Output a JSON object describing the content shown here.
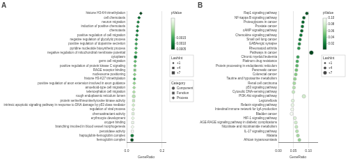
{
  "chart_data": [
    {
      "type": "scatter",
      "title": "A",
      "orientation": "horizontal",
      "xlabel": "GeneRatio",
      "categories": [
        "histone H3-K4 trimethylation",
        "cell chemotaxis",
        "neuron migration",
        "induction of positive chemotaxis",
        "chemotaxis",
        "positive regulation of cell migration",
        "negative regulation of glycolytic process",
        "positive regulation of dopamine secretion",
        "pyridine nucleotide biosynthetic process",
        "negative regulation of mitochondrial membrane potential",
        "cytoplasm",
        "germ cell migration",
        "positive regulation of protein kinase C signaling",
        "RAGE receptor binding",
        "nucleosome positioning",
        "histone H3-K27 trimethylation",
        "positive regulation of axon extension involved in axon guidance",
        "amoeboid-type cell migration",
        "telencephalon cell migration",
        "rough endoplasmic reticulum lumen",
        "protein serine/threonine/tyrosine kinase activity",
        "intrinsic apoptotic signaling pathway in response to DNA damage by p53 class mediator",
        "regulation of viral process",
        "chemoattractant activity",
        "erythrocyte development",
        "oxygen binding",
        "branching involved in blood vessel morphogenesis",
        "peroxidase activity",
        "haptoglobin-hemoglobin complex",
        "hemoglobin complex"
      ],
      "series": [
        {
          "name": "Component",
          "marker": "circle",
          "values": [
            null,
            null,
            null,
            null,
            null,
            null,
            null,
            null,
            null,
            null,
            0.05,
            null,
            null,
            null,
            null,
            null,
            null,
            null,
            null,
            0.04,
            null,
            null,
            null,
            null,
            null,
            null,
            null,
            null,
            0.031,
            0.03
          ],
          "pvalue": [
            null,
            null,
            null,
            null,
            null,
            null,
            null,
            null,
            null,
            null,
            0.001,
            null,
            null,
            null,
            null,
            null,
            null,
            null,
            null,
            0.0024,
            null,
            null,
            null,
            null,
            null,
            null,
            null,
            null,
            0.001,
            0.0005
          ]
        },
        {
          "name": "Function",
          "marker": "square",
          "values": [
            null,
            null,
            null,
            null,
            null,
            null,
            null,
            null,
            null,
            null,
            null,
            null,
            null,
            0.046,
            null,
            null,
            null,
            null,
            null,
            null,
            0.039,
            null,
            null,
            0.036,
            null,
            0.034,
            null,
            0.032,
            null,
            null
          ],
          "pvalue": [
            null,
            null,
            null,
            null,
            null,
            null,
            null,
            null,
            null,
            null,
            null,
            null,
            null,
            0.0019,
            null,
            null,
            null,
            null,
            null,
            null,
            0.0025,
            null,
            null,
            0.0028,
            null,
            0.003,
            null,
            0.0032,
            null,
            null
          ]
        },
        {
          "name": "Process",
          "marker": "diamond",
          "values": [
            0.08,
            0.07,
            0.065,
            0.062,
            0.06,
            0.058,
            0.055,
            0.054,
            0.053,
            0.052,
            null,
            0.048,
            0.047,
            null,
            0.045,
            0.044,
            0.043,
            0.042,
            0.041,
            null,
            null,
            0.038,
            0.037,
            null,
            0.035,
            null,
            0.033,
            null,
            null,
            null
          ],
          "pvalue": [
            0.0005,
            0.0008,
            0.001,
            0.0012,
            0.0009,
            0.0011,
            0.0013,
            0.0014,
            0.0015,
            0.0016,
            null,
            0.0017,
            0.0018,
            null,
            0.002,
            0.0015,
            0.0021,
            0.0022,
            0.0023,
            null,
            null,
            0.0026,
            0.0027,
            null,
            0.0029,
            null,
            0.0031,
            null,
            null,
            null
          ]
        }
      ],
      "legend": "right",
      "legend_title": "Category",
      "xlim": [
        0.0,
        0.22
      ],
      "xticks": [
        {
          "value": 0,
          "label": "0.0"
        },
        0.2
      ],
      "grid": "x",
      "colorbar": {
        "label": "pValue",
        "range": [
          0.0005,
          0.0032
        ],
        "ticks": [
          0.0005,
          {
            "value": 0.001,
            "label": "0.0010"
          },
          0.0015
        ]
      },
      "size_legend": {
        "title": "LashInt",
        "labels": [
          "+1",
          "+4",
          "+7"
        ],
        "marker": "square"
      }
    },
    {
      "type": "scatter",
      "title": "B",
      "orientation": "horizontal",
      "xlabel": "GeneRatio",
      "categories": [
        "Rap1 signaling pathway",
        "NF-kappa B signaling pathway",
        "Proteoglycans in cancer",
        "Prostate cancer",
        "cAMP signaling pathway",
        "Chemokine signaling pathway",
        "Small cell lung cancer",
        "GABAergic synapse",
        "Rheumatoid arthritis",
        "Pathways in cancer",
        "Chronic myeloid leukemia",
        "Platinum drug resistance",
        "Protein processing in endoplasmic reticulum",
        "Pancreatic cancer",
        "Colorectal cancer",
        "Taurine and hypotaurine metabolism",
        "Renal cell carcinoma",
        "p53 signaling pathway",
        "Cytosolic DNA-sensing pathway",
        "PI3K-Akt signaling pathway",
        "Legionellosis",
        "Relaxin signaling pathway",
        "Intestinal immune network for IgA production",
        "Bladder cancer",
        "HIF-1 signaling pathway",
        "AGE-RAGE signaling pathway in diabetic complications",
        "Nicotinate and nicotinamide metabolism",
        "IL-17 signaling pathway",
        "Malaria",
        "African trypanosomiasis"
      ],
      "series": [
        {
          "marker": "circle",
          "values": [
            0.095,
            0.085,
            0.082,
            0.08,
            0.078,
            0.075,
            0.072,
            0.07,
            0.068,
            0.11,
            0.065,
            0.063,
            0.062,
            0.06,
            0.058,
            0.055,
            0.053,
            0.052,
            0.05,
            0.085,
            0.048,
            0.047,
            0.046,
            0.044,
            0.055,
            0.058,
            0.06,
            0.062,
            0.065,
            0.07
          ],
          "pvalue": [
            0.005,
            0.008,
            0.012,
            0.015,
            0.01,
            0.018,
            0.02,
            0.025,
            0.03,
            0.002,
            0.035,
            0.04,
            0.045,
            0.05,
            0.055,
            0.06,
            0.065,
            0.07,
            0.075,
            0.08,
            0.085,
            0.09,
            0.095,
            0.1,
            0.085,
            0.08,
            0.075,
            0.07,
            0.065,
            0.06
          ],
          "size": [
            3,
            3,
            3,
            3,
            3,
            3,
            3,
            3,
            3,
            5,
            3,
            3,
            3,
            3,
            3,
            3,
            3,
            3,
            3,
            4,
            3,
            3,
            3,
            3,
            3,
            3,
            3,
            3,
            3,
            3
          ]
        }
      ],
      "xlim": [
        0.0,
        0.13
      ],
      "xticks": [
        {
          "value": 0,
          "label": "0.00"
        },
        0.05,
        {
          "value": 0.1,
          "label": "0.10"
        }
      ],
      "grid": "x",
      "colorbar": {
        "label": "pValue",
        "range": [
          0.002,
          0.1
        ],
        "ticks": [
          0.02,
          0.04,
          0.06,
          0.08,
          {
            "value": 0.1,
            "label": "0.10"
          }
        ]
      },
      "size_legend": {
        "title": "LashInt",
        "labels": [
          "+1",
          "+4",
          "+7"
        ],
        "marker": "circle"
      }
    }
  ]
}
